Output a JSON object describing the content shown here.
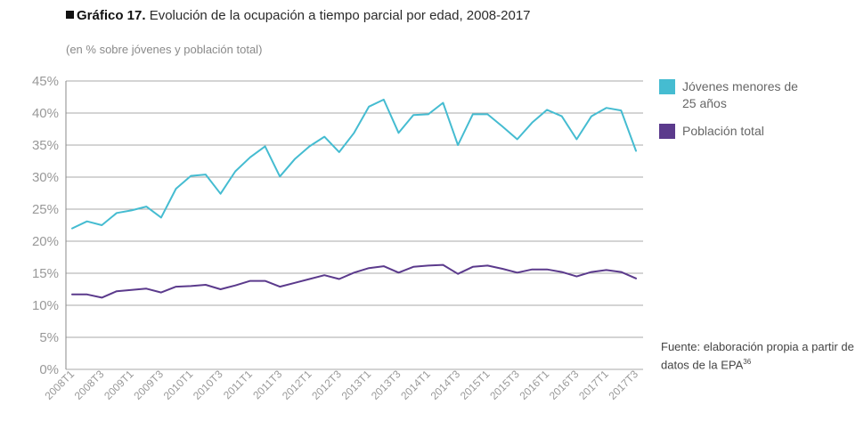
{
  "header": {
    "title_bold": "Gráfico 17.",
    "title_rest": " Evolución de la ocupación a tiempo parcial por edad, 2008-2017",
    "subtitle": "(en % sobre jóvenes y población total)"
  },
  "legend": {
    "items": [
      {
        "label": "Jóvenes menores de 25 años",
        "color": "#45bcd1"
      },
      {
        "label": "Población total",
        "color": "#5b3a8c"
      }
    ]
  },
  "source": {
    "text": "Fuente: elaboración propia a partir de datos de la EPA",
    "footnote": "36"
  },
  "chart_data": {
    "type": "line",
    "title": "Evolución de la ocupación a tiempo parcial por edad, 2008-2017",
    "ylabel": "(en % sobre jóvenes y población total)",
    "ylim": [
      0,
      45
    ],
    "yticks": [
      "0%",
      "5%",
      "10%",
      "15%",
      "20%",
      "25%",
      "30%",
      "35%",
      "40%",
      "45%"
    ],
    "xtick_labels": [
      "2008T1",
      "2008T3",
      "2009T1",
      "2009T3",
      "2010T1",
      "2010T3",
      "2011T1",
      "2011T3",
      "2012T1",
      "2012T3",
      "2013T1",
      "2013T3",
      "2014T1",
      "2014T3",
      "2015T1",
      "2015T3",
      "2016T1",
      "2016T3",
      "2017T1",
      "2017T3"
    ],
    "x": [
      "2008T1",
      "2008T2",
      "2008T3",
      "2008T4",
      "2009T1",
      "2009T2",
      "2009T3",
      "2009T4",
      "2010T1",
      "2010T2",
      "2010T3",
      "2010T4",
      "2011T1",
      "2011T2",
      "2011T3",
      "2011T4",
      "2012T1",
      "2012T2",
      "2012T3",
      "2012T4",
      "2013T1",
      "2013T2",
      "2013T3",
      "2013T4",
      "2014T1",
      "2014T2",
      "2014T3",
      "2014T4",
      "2015T1",
      "2015T2",
      "2015T3",
      "2015T4",
      "2016T1",
      "2016T2",
      "2016T3",
      "2016T4",
      "2017T1",
      "2017T2",
      "2017T3"
    ],
    "series": [
      {
        "name": "Jóvenes menores de 25 años",
        "color": "#45bcd1",
        "values": [
          22.0,
          23.1,
          22.5,
          24.4,
          24.8,
          25.4,
          23.7,
          28.2,
          30.2,
          30.4,
          27.4,
          30.9,
          33.1,
          34.8,
          30.1,
          32.8,
          34.8,
          36.3,
          33.9,
          36.9,
          41.0,
          42.1,
          36.9,
          39.7,
          39.8,
          41.6,
          35.0,
          39.8,
          39.8,
          37.9,
          35.9,
          38.5,
          40.5,
          39.5,
          35.9,
          39.5,
          40.8,
          40.4,
          34.1
        ]
      },
      {
        "name": "Población total",
        "color": "#5b3a8c",
        "values": [
          11.7,
          11.7,
          11.2,
          12.2,
          12.4,
          12.6,
          12.0,
          12.9,
          13.0,
          13.2,
          12.5,
          13.1,
          13.8,
          13.8,
          12.9,
          13.5,
          14.1,
          14.7,
          14.1,
          15.1,
          15.8,
          16.1,
          15.1,
          16.0,
          16.2,
          16.3,
          14.9,
          16.0,
          16.2,
          15.7,
          15.1,
          15.6,
          15.6,
          15.2,
          14.5,
          15.2,
          15.5,
          15.2,
          14.2
        ]
      }
    ]
  }
}
